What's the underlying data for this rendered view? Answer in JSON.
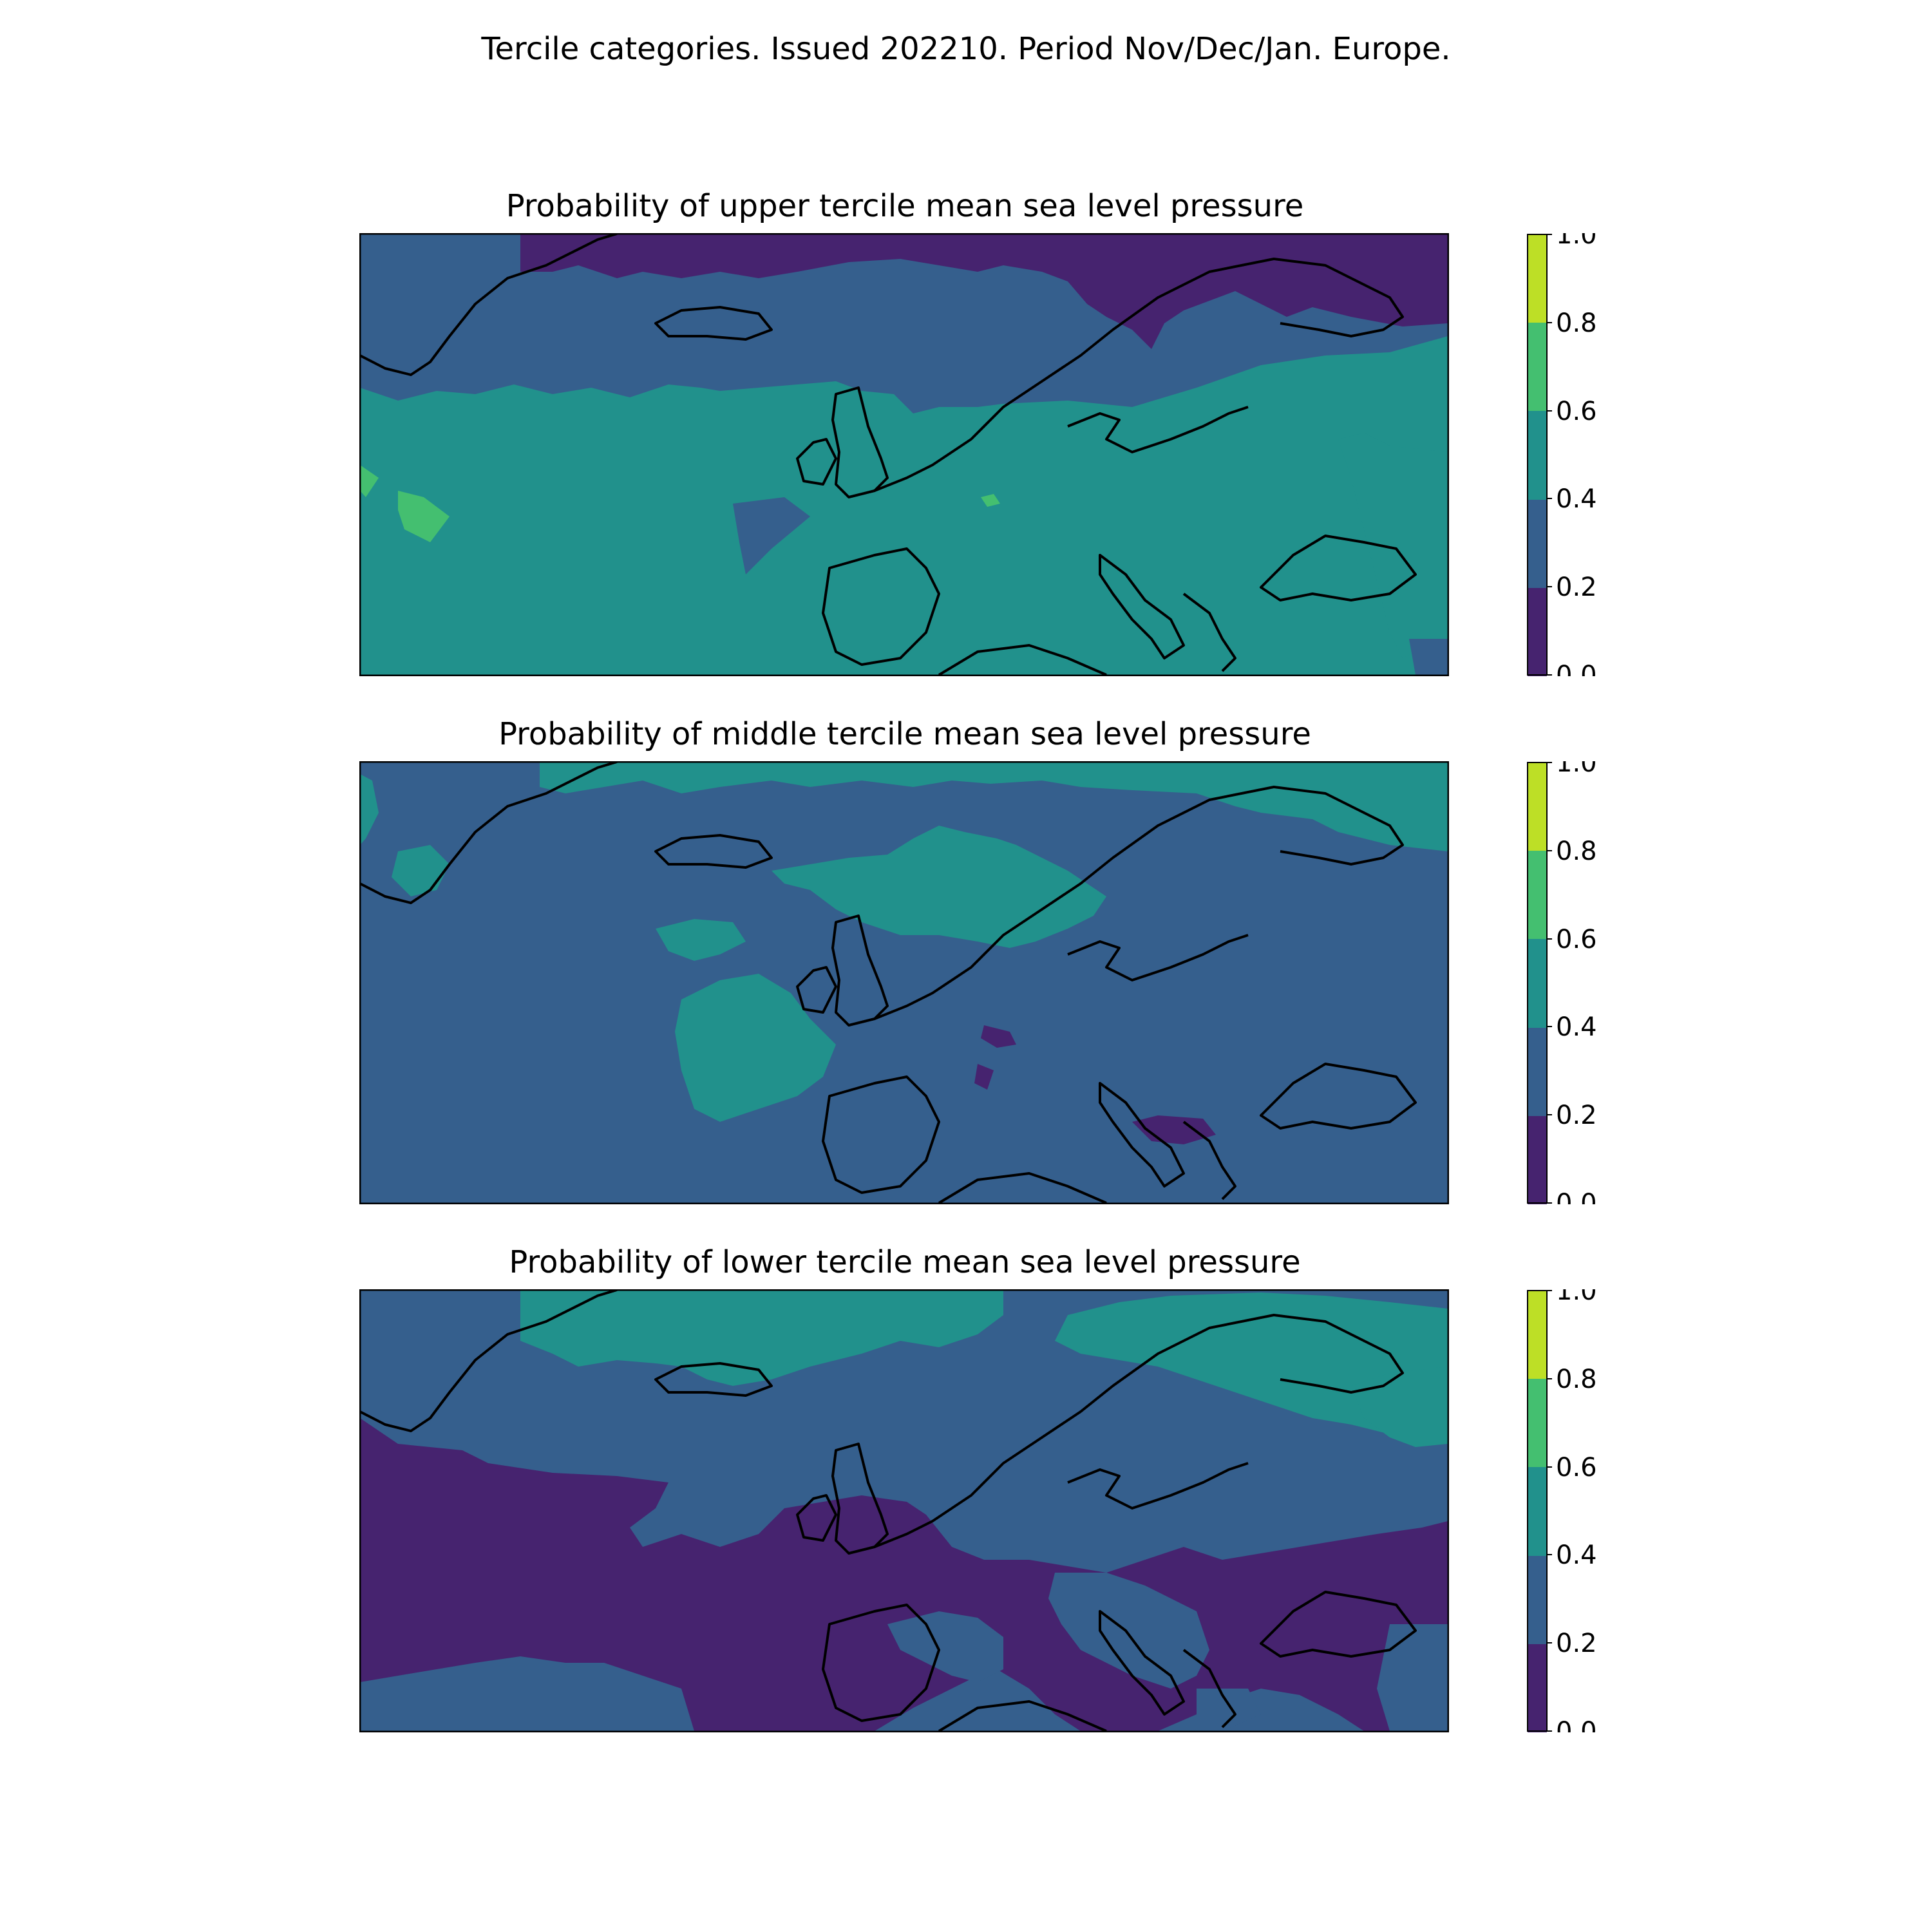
{
  "figure": {
    "suptitle": "Tercile categories. Issued 202210. Period Nov/Dec/Jan. Europe."
  },
  "colorbar": {
    "levels": [
      0.0,
      0.2,
      0.4,
      0.6,
      0.8,
      1.0
    ],
    "tick_labels": [
      "0.0",
      "0.2",
      "0.4",
      "0.6",
      "0.8",
      "1.0"
    ],
    "colors": [
      "#46236f",
      "#355f8d",
      "#21918c",
      "#44bf70",
      "#bddf26"
    ]
  },
  "panels": [
    {
      "id": "upper",
      "title": "Probability of upper tercile mean sea level pressure",
      "dominant_category": "0.4-0.6",
      "categories_present": [
        "0.0-0.2",
        "0.2-0.4",
        "0.4-0.6",
        "0.6-0.8"
      ]
    },
    {
      "id": "middle",
      "title": "Probability of middle tercile mean sea level pressure",
      "dominant_category": "0.2-0.4",
      "categories_present": [
        "0.0-0.2",
        "0.2-0.4",
        "0.4-0.6"
      ]
    },
    {
      "id": "lower",
      "title": "Probability of lower tercile mean sea level pressure",
      "dominant_category": "0.0-0.2",
      "categories_present": [
        "0.0-0.2",
        "0.2-0.4",
        "0.4-0.6"
      ]
    }
  ],
  "chart_data": {
    "type": "heatmap",
    "title": "Tercile categories. Issued 202210. Period Nov/Dec/Jan. Europe.",
    "colorbar_range": [
      0,
      1
    ],
    "colorbar_ticks": [
      0.0,
      0.2,
      0.4,
      0.6,
      0.8,
      1.0
    ],
    "panels": [
      "Probability of upper tercile mean sea level pressure",
      "Probability of middle tercile mean sea level pressure",
      "Probability of lower tercile mean sea level pressure"
    ]
  }
}
